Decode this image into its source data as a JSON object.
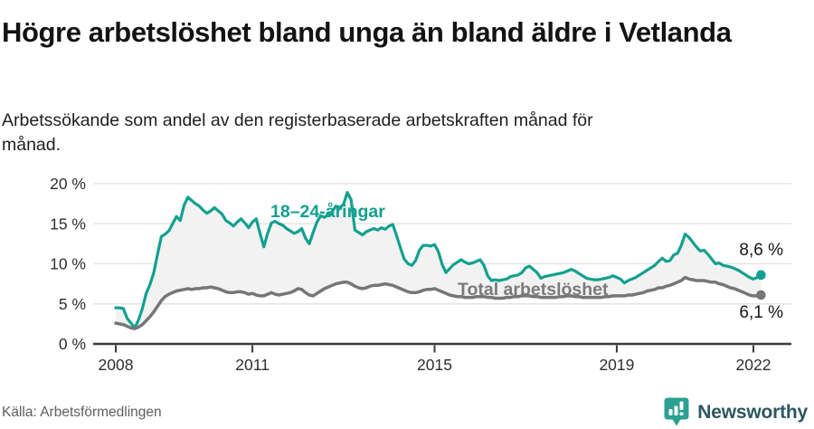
{
  "header": {
    "title": "Högre arbetslöshet bland unga än bland äldre i Vetlanda",
    "subtitle": "Arbetssökande som andel av den registerbaserade arbetskraften månad för månad."
  },
  "chart_data": {
    "type": "line",
    "title": "Högre arbetslöshet bland unga än bland äldre i Vetlanda",
    "subtitle": "Arbetssökande som andel av den registerbaserade arbetskraften månad för månad.",
    "unit": "%",
    "grid": true,
    "legend_position": "inline-labels",
    "band_fill": "#f2f2f2",
    "x_axis": {
      "range_years": [
        2007.5,
        2022.83
      ],
      "ticks": [
        2008,
        2011,
        2015,
        2019,
        2022
      ],
      "tick_labels": [
        "2008",
        "2011",
        "2015",
        "2019",
        "2022"
      ]
    },
    "y_axis": {
      "range": [
        0,
        21
      ],
      "ticks": [
        0,
        5,
        10,
        15,
        20
      ],
      "tick_labels": [
        "0 %",
        "5 %",
        "10 %",
        "15 %",
        "20 %"
      ]
    },
    "series": [
      {
        "name": "18–24-åringar",
        "color": "#12a090",
        "line_width": 3.2,
        "end_label": "8,6 %",
        "end_value": 8.6,
        "monthly_from": "2008-01",
        "values": [
          4.5,
          4.5,
          4.4,
          3.2,
          2.6,
          2.0,
          3.0,
          4.4,
          6.3,
          7.4,
          8.9,
          11.2,
          13.4,
          13.7,
          14.1,
          15.0,
          15.9,
          15.4,
          17.3,
          18.3,
          17.9,
          17.5,
          17.2,
          16.7,
          16.3,
          16.6,
          17.0,
          16.6,
          16.2,
          15.4,
          15.1,
          14.7,
          15.2,
          15.6,
          15.1,
          14.5,
          15.2,
          15.6,
          13.8,
          12.1,
          13.8,
          15.1,
          15.3,
          15.0,
          14.8,
          14.4,
          14.1,
          13.8,
          14.0,
          14.4,
          13.2,
          12.5,
          13.9,
          15.2,
          16.0,
          15.8,
          16.1,
          16.5,
          17.2,
          17.0,
          17.4,
          18.9,
          18.0,
          14.2,
          13.9,
          13.6,
          14.0,
          14.2,
          14.4,
          14.2,
          14.5,
          14.3,
          14.7,
          14.9,
          13.5,
          12.0,
          10.6,
          10.0,
          9.8,
          10.4,
          11.7,
          12.3,
          12.3,
          12.2,
          12.4,
          11.5,
          9.9,
          8.9,
          9.4,
          9.9,
          10.2,
          10.5,
          10.2,
          10.0,
          10.1,
          10.3,
          10.5,
          9.8,
          8.5,
          7.9,
          8.0,
          7.9,
          8.0,
          8.1,
          8.4,
          8.5,
          8.6,
          8.9,
          9.5,
          9.7,
          9.3,
          8.9,
          8.2,
          8.4,
          8.5,
          8.6,
          8.7,
          8.8,
          8.9,
          9.1,
          9.3,
          9.1,
          8.8,
          8.5,
          8.2,
          8.1,
          8.0,
          8.0,
          8.1,
          8.2,
          8.3,
          8.5,
          8.3,
          8.1,
          7.6,
          7.9,
          8.1,
          8.3,
          8.6,
          8.9,
          9.2,
          9.5,
          9.8,
          10.3,
          10.7,
          10.3,
          10.4,
          11.1,
          11.3,
          12.3,
          13.7,
          13.3,
          12.7,
          12.1,
          11.6,
          11.7,
          11.2,
          10.6,
          10.0,
          10.1,
          9.8,
          9.7,
          9.6,
          9.4,
          9.2,
          8.9,
          8.6,
          8.3,
          8.1,
          8.3,
          8.6
        ]
      },
      {
        "name": "Total arbetslöshet",
        "color": "#767678",
        "line_width": 3.5,
        "end_label": "6,1 %",
        "end_value": 6.1,
        "monthly_from": "2008-01",
        "values": [
          2.6,
          2.5,
          2.4,
          2.2,
          2.0,
          1.9,
          2.1,
          2.4,
          2.9,
          3.4,
          4.0,
          4.7,
          5.4,
          5.9,
          6.2,
          6.4,
          6.6,
          6.7,
          6.8,
          6.9,
          6.8,
          6.9,
          6.9,
          7.0,
          7.0,
          7.1,
          7.0,
          6.9,
          6.7,
          6.5,
          6.4,
          6.4,
          6.5,
          6.5,
          6.4,
          6.2,
          6.3,
          6.1,
          6.0,
          6.0,
          6.2,
          6.4,
          6.2,
          6.1,
          6.2,
          6.3,
          6.4,
          6.6,
          6.9,
          6.8,
          6.4,
          6.1,
          6.0,
          6.3,
          6.6,
          6.9,
          7.1,
          7.3,
          7.5,
          7.6,
          7.7,
          7.7,
          7.5,
          7.2,
          7.0,
          6.9,
          7.0,
          7.2,
          7.3,
          7.3,
          7.4,
          7.5,
          7.4,
          7.3,
          7.1,
          6.9,
          6.7,
          6.5,
          6.4,
          6.4,
          6.5,
          6.7,
          6.8,
          6.8,
          6.9,
          6.7,
          6.5,
          6.3,
          6.1,
          6.0,
          5.9,
          5.9,
          5.8,
          5.8,
          5.8,
          5.9,
          5.9,
          5.9,
          5.8,
          5.8,
          5.7,
          5.7,
          5.7,
          5.8,
          5.8,
          5.9,
          5.9,
          6.0,
          6.0,
          6.0,
          5.9,
          5.9,
          5.8,
          5.8,
          5.8,
          5.8,
          5.8,
          5.9,
          5.9,
          6.0,
          6.0,
          5.9,
          5.9,
          5.8,
          5.8,
          5.8,
          5.8,
          5.8,
          5.8,
          5.9,
          5.9,
          6.0,
          6.0,
          6.0,
          6.0,
          6.1,
          6.1,
          6.2,
          6.3,
          6.4,
          6.6,
          6.7,
          6.8,
          7.0,
          7.0,
          7.2,
          7.3,
          7.5,
          7.7,
          7.9,
          8.3,
          8.1,
          8.0,
          7.9,
          7.9,
          7.9,
          7.8,
          7.7,
          7.7,
          7.5,
          7.4,
          7.2,
          7.0,
          6.9,
          6.7,
          6.5,
          6.3,
          6.1,
          6.0,
          6.0,
          6.1
        ]
      }
    ],
    "colors": {
      "grid": "#e4e4e4",
      "axis": "#3a3a3a",
      "tick_text": "#2e2e2e"
    }
  },
  "footer": {
    "source": "Källa: Arbetsförmedlingen",
    "brand": "Newsworthy"
  }
}
